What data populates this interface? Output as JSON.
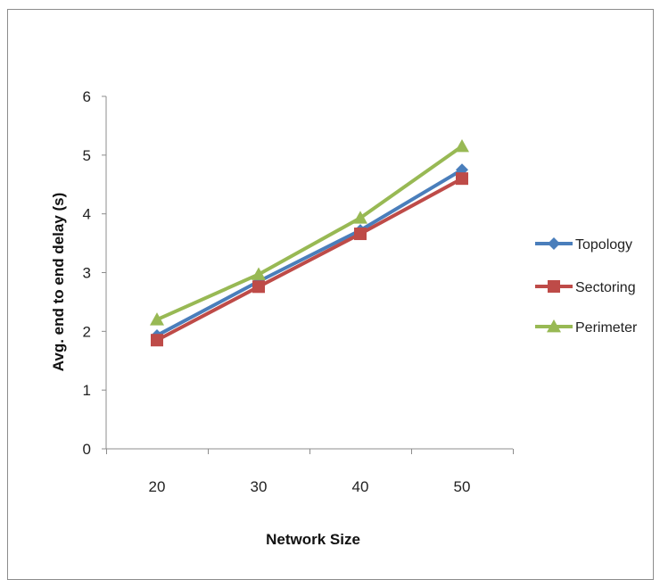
{
  "chart_data": {
    "type": "line",
    "title": "",
    "xlabel": "Network Size",
    "ylabel": "Avg. end to end delay (s)",
    "categories": [
      "20",
      "30",
      "40",
      "50"
    ],
    "ylim": [
      0,
      6
    ],
    "yticks": [
      "0",
      "1",
      "2",
      "3",
      "4",
      "5",
      "6"
    ],
    "grid": false,
    "legend_position": "right",
    "series": [
      {
        "name": "Topology",
        "values": [
          1.93,
          2.85,
          3.72,
          4.75
        ],
        "color": "#4a7ebb",
        "marker": "diamond"
      },
      {
        "name": "Sectoring",
        "values": [
          1.85,
          2.76,
          3.66,
          4.6
        ],
        "color": "#be4b48",
        "marker": "square"
      },
      {
        "name": "Perimeter",
        "values": [
          2.2,
          2.97,
          3.93,
          5.15
        ],
        "color": "#98b954",
        "marker": "triangle"
      }
    ]
  }
}
